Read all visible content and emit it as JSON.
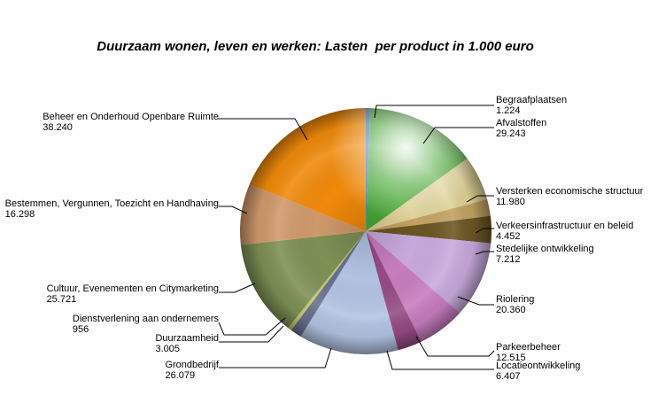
{
  "chart_data": {
    "type": "pie",
    "title": "Duurzaam wonen, leven en werken: Lasten  per product in 1.000 euro",
    "start_angle_deg": 0,
    "direction": "clockwise",
    "legend_position": "callout-labels",
    "slices": [
      {
        "label": "Begraafplaatsen",
        "value": 1224,
        "value_label": "1.224",
        "color": "#5581C8"
      },
      {
        "label": "Afvalstoffen",
        "value": 29243,
        "value_label": "29.243",
        "color": "#49A935"
      },
      {
        "label": "Versterken economische structuur",
        "value": 11980,
        "value_label": "11.980",
        "color": "#DFD095"
      },
      {
        "label": "Verkeersinfrastructuur en beleid",
        "value": 4452,
        "value_label": "4.452",
        "color": "#C2A263"
      },
      {
        "label": "Stedelijke ontwikkeling",
        "value": 7212,
        "value_label": "7.212",
        "color": "#6B5523"
      },
      {
        "label": "Riolering",
        "value": 20360,
        "value_label": "20.360",
        "color": "#C8A9DC"
      },
      {
        "label": "Parkeerbeheer",
        "value": 12515,
        "value_label": "12.515",
        "color": "#C77CBF"
      },
      {
        "label": "Locatieontwikkeling",
        "value": 6407,
        "value_label": "6.407",
        "color": "#964B85"
      },
      {
        "label": "Grondbedrijf",
        "value": 26079,
        "value_label": "26.079",
        "color": "#B2C3E2"
      },
      {
        "label": "Duurzaamheid",
        "value": 3005,
        "value_label": "3.005",
        "color": "#68708F"
      },
      {
        "label": "Dienstverlening aan ondernemers",
        "value": 956,
        "value_label": "956",
        "color": "#C6CC66"
      },
      {
        "label": "Cultuur, Evenementen en Citymarketing",
        "value": 25721,
        "value_label": "25.721",
        "color": "#7D9055"
      },
      {
        "label": "Bestemmen, Vergunnen, Toezicht en Handhaving",
        "value": 16298,
        "value_label": "16.298",
        "color": "#D0996B"
      },
      {
        "label": "Beheer en Onderhoud Openbare Ruimte",
        "value": 38240,
        "value_label": "38.240",
        "color": "#F08A0B"
      }
    ]
  }
}
